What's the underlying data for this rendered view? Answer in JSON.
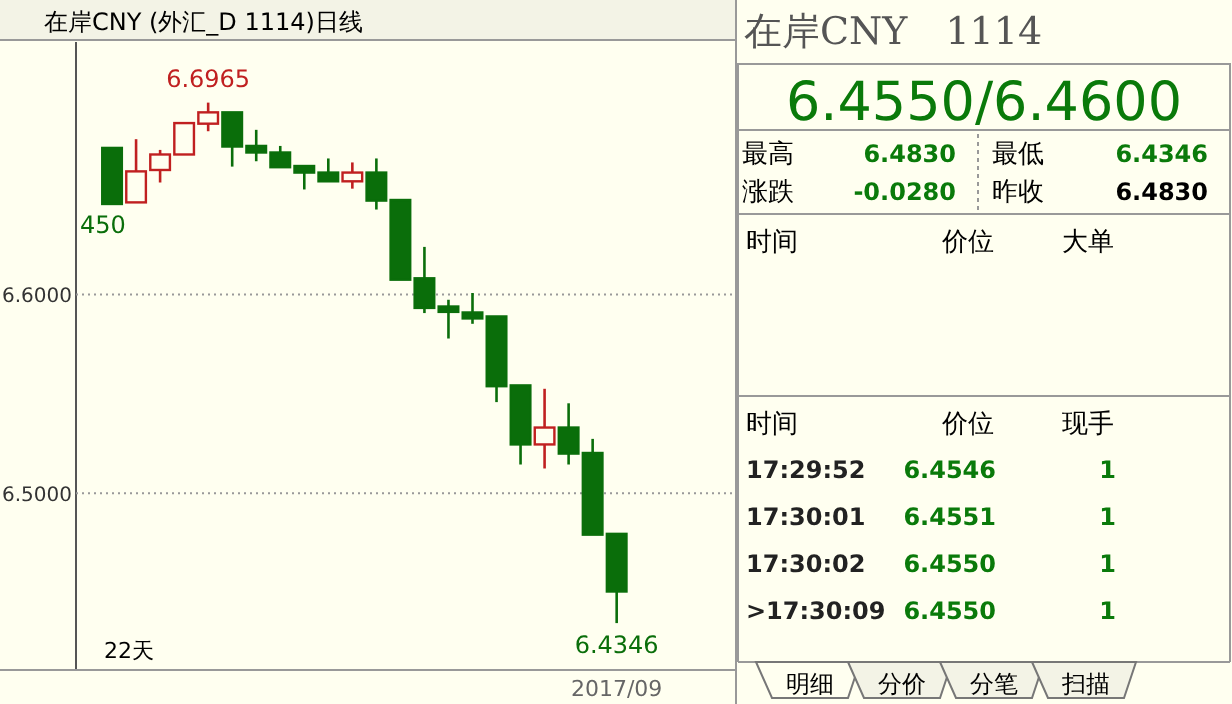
{
  "chart_data": [
    {
      "type": "candlestick",
      "title": "在岸CNY (外汇_D 1114)日线",
      "categories": [
        null,
        null,
        null,
        null,
        null,
        null,
        null,
        null,
        null,
        null,
        null,
        null,
        null,
        null,
        null,
        null,
        null,
        null,
        null,
        null,
        null,
        "2017/09"
      ],
      "ohlc": [
        [
          6.6737,
          6.6737,
          6.645,
          6.6455
        ],
        [
          6.6463,
          6.6781,
          6.6463,
          6.6619
        ],
        [
          6.6626,
          6.6727,
          6.6563,
          6.6704
        ],
        [
          6.6704,
          6.6862,
          6.6704,
          6.6862
        ],
        [
          6.6859,
          6.6965,
          6.6821,
          6.6916
        ],
        [
          6.6916,
          6.6916,
          6.6643,
          6.6744
        ],
        [
          6.6747,
          6.6828,
          6.667,
          6.6714
        ],
        [
          6.6714,
          6.6747,
          6.664,
          6.664
        ],
        [
          6.6646,
          6.6646,
          6.6528,
          6.6613
        ],
        [
          6.6613,
          6.6684,
          6.6569,
          6.6569
        ],
        [
          6.6569,
          6.6664,
          6.6532,
          6.6613
        ],
        [
          6.6613,
          6.6684,
          6.6427,
          6.6472
        ],
        [
          6.6475,
          6.6475,
          6.6074,
          6.6074
        ],
        [
          6.6081,
          6.6239,
          6.5906,
          6.5932
        ],
        [
          6.5939,
          6.5973,
          6.5778,
          6.5912
        ],
        [
          6.5909,
          6.6007,
          6.5852,
          6.5879
        ],
        [
          6.5889,
          6.5889,
          6.5458,
          6.5538
        ],
        [
          6.5542,
          6.5542,
          6.5144,
          6.5245
        ],
        [
          6.5245,
          6.5525,
          6.5124,
          6.533
        ],
        [
          6.533,
          6.5452,
          6.5144,
          6.5199
        ],
        [
          6.5202,
          6.5273,
          6.4791,
          6.4791
        ],
        [
          6.4795,
          6.4795,
          6.4346,
          6.4505
        ]
      ],
      "colors": [
        "#0a6e0a",
        "#c02020",
        "#c02020",
        "#c02020",
        "#c02020",
        "#0a6e0a",
        "#0a6e0a",
        "#0a6e0a",
        "#0a6e0a",
        "#0a6e0a",
        "#c02020",
        "#0a6e0a",
        "#0a6e0a",
        "#0a6e0a",
        "#0a6e0a",
        "#0a6e0a",
        "#0a6e0a",
        "#0a6e0a",
        "#c02020",
        "#0a6e0a",
        "#0a6e0a",
        "#0a6e0a"
      ],
      "ylim": [
        6.411,
        6.727
      ],
      "yticks": [
        {
          "value": 6.6,
          "label": "6.6000"
        },
        {
          "value": 6.5,
          "label": "6.5000"
        }
      ],
      "grid": "y",
      "annotations": [
        {
          "text": "6.6965",
          "y": 6.6965
        },
        {
          "text": "6.4346",
          "y": 6.4346
        },
        {
          "text": "450",
          "y": 6.645
        },
        "22天"
      ]
    },
    {
      "type": "other",
      "title": "在岸CNY　1114",
      "subtitle": "6.4550/6.4600",
      "annotations": [
        "最高",
        "6.4830",
        "最低",
        "6.4346",
        "涨跌",
        "-0.0280",
        "昨收",
        "6.4830",
        "时间",
        "价位",
        "大单",
        "时间",
        "价位",
        "现手",
        "17:29:52",
        "6.4546",
        "1",
        "17:30:01",
        "6.4551",
        "1",
        "17:30:02",
        "6.4550",
        "1",
        ">17:30:09",
        "6.4550",
        "1",
        "明细",
        "分价",
        "分笔",
        "扫描"
      ]
    }
  ]
}
